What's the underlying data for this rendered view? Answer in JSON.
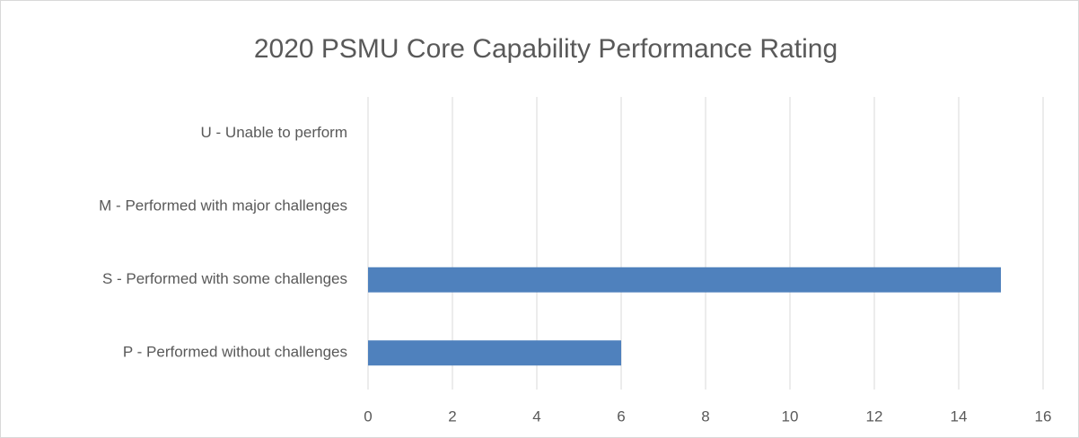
{
  "chart_data": {
    "type": "bar",
    "orientation": "horizontal",
    "title": "2020 PSMU Core Capability Performance Rating",
    "categories": [
      "U - Unable to perform",
      "M - Performed with major challenges",
      "S - Performed with some challenges",
      "P - Performed without challenges"
    ],
    "values": [
      0,
      0,
      15,
      6
    ],
    "color": "#4f81bd",
    "xlim": [
      0,
      16
    ],
    "xticks": [
      0,
      2,
      4,
      6,
      8,
      10,
      12,
      14,
      16
    ],
    "grid": true
  }
}
